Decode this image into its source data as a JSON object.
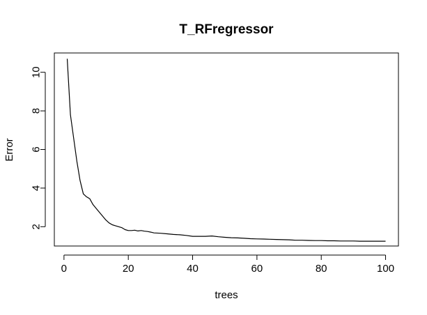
{
  "chart_data": {
    "type": "line",
    "title": "T_RFregressor",
    "xlabel": "trees",
    "ylabel": "Error",
    "xlim": [
      -3,
      104
    ],
    "ylim": [
      1.0,
      11.0
    ],
    "x_ticks": [
      0,
      20,
      40,
      60,
      80,
      100
    ],
    "y_ticks": [
      2,
      4,
      6,
      8,
      10
    ],
    "grid": false,
    "series": [
      {
        "color": "#000000",
        "x": [
          1,
          2,
          3,
          4,
          5,
          6,
          7,
          8,
          9,
          10,
          11,
          12,
          13,
          14,
          15,
          16,
          17,
          18,
          19,
          20,
          21,
          22,
          23,
          24,
          25,
          26,
          27,
          28,
          30,
          32,
          34,
          36,
          38,
          40,
          42,
          44,
          46,
          48,
          50,
          52,
          54,
          56,
          58,
          60,
          62,
          64,
          66,
          68,
          70,
          72,
          74,
          76,
          78,
          80,
          82,
          84,
          86,
          88,
          90,
          92,
          94,
          96,
          98,
          100
        ],
        "y": [
          10.7,
          7.8,
          6.6,
          5.4,
          4.4,
          3.7,
          3.55,
          3.45,
          3.15,
          2.95,
          2.75,
          2.55,
          2.35,
          2.2,
          2.1,
          2.05,
          2.0,
          1.95,
          1.85,
          1.8,
          1.8,
          1.82,
          1.78,
          1.8,
          1.77,
          1.75,
          1.72,
          1.68,
          1.66,
          1.63,
          1.6,
          1.58,
          1.55,
          1.5,
          1.5,
          1.5,
          1.52,
          1.48,
          1.45,
          1.43,
          1.42,
          1.4,
          1.38,
          1.37,
          1.36,
          1.35,
          1.34,
          1.33,
          1.32,
          1.3,
          1.3,
          1.29,
          1.28,
          1.28,
          1.27,
          1.27,
          1.26,
          1.26,
          1.26,
          1.25,
          1.25,
          1.25,
          1.25,
          1.25
        ]
      }
    ]
  }
}
